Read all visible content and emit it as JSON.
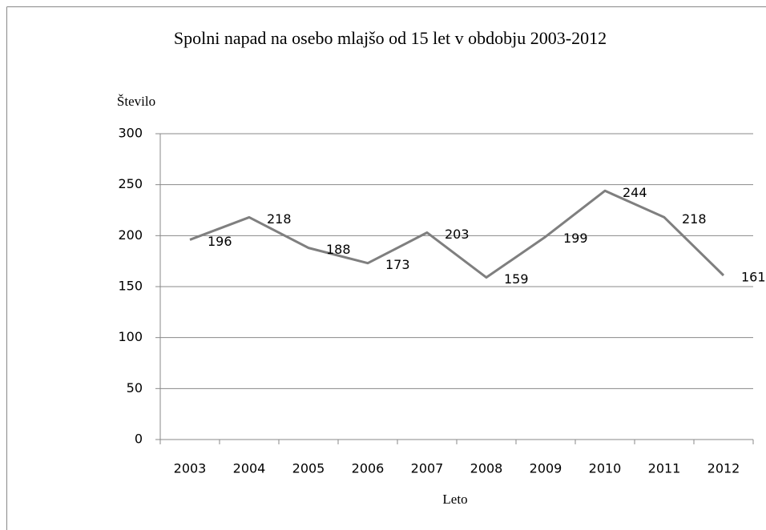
{
  "chart_data": {
    "type": "line",
    "title": "Spolni napad na osebo mlajšo od 15 let v obdobju 2003-2012",
    "ylabel": "Število",
    "xlabel": "Leto",
    "categories": [
      "2003",
      "2004",
      "2005",
      "2006",
      "2007",
      "2008",
      "2009",
      "2010",
      "2011",
      "2012"
    ],
    "series": [
      {
        "name": "Število",
        "color": "#7f7f7f",
        "values": [
          196,
          218,
          188,
          173,
          203,
          159,
          199,
          244,
          218,
          161
        ]
      }
    ],
    "ylim": [
      0,
      300
    ],
    "yticks": [
      0,
      50,
      100,
      150,
      200,
      250,
      300
    ],
    "grid": true
  }
}
